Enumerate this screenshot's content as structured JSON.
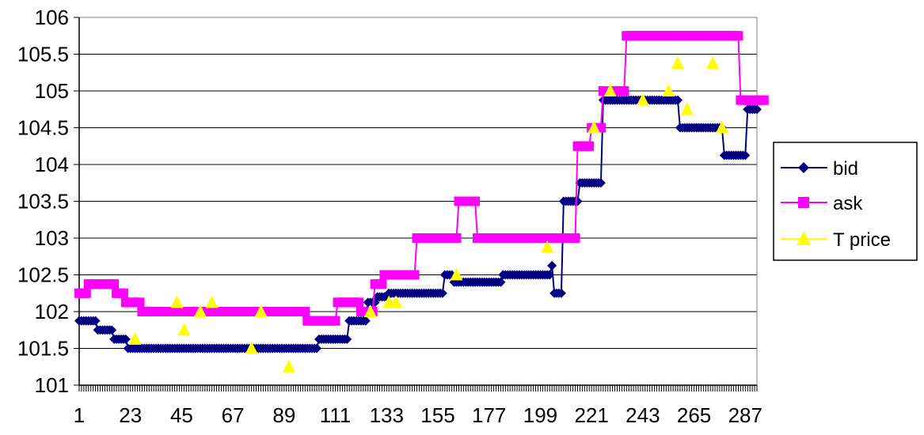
{
  "chart_data": {
    "type": "line",
    "title": "",
    "xlabel": "",
    "ylabel": "",
    "ylim": [
      101,
      106
    ],
    "y_ticks": [
      "101",
      "101.5",
      "102",
      "102.5",
      "103",
      "103.5",
      "104",
      "104.5",
      "105",
      "105.5",
      "106"
    ],
    "x_tick_labels": [
      "1",
      "23",
      "45",
      "67",
      "89",
      "111",
      "133",
      "155",
      "177",
      "199",
      "221",
      "243",
      "265",
      "287"
    ],
    "xlim": [
      1,
      292
    ],
    "grid": "horizontal",
    "legend_position": "right",
    "series": [
      {
        "name": "bid",
        "color": "#000080",
        "marker": "diamond",
        "segments": [
          [
            1,
            8,
            101.875
          ],
          [
            9,
            15,
            101.75
          ],
          [
            16,
            21,
            101.625
          ],
          [
            22,
            25,
            101.5
          ],
          [
            26,
            103,
            101.5
          ],
          [
            104,
            111,
            101.625
          ],
          [
            112,
            116,
            101.625
          ],
          [
            117,
            124,
            101.875
          ],
          [
            125,
            128,
            102.125
          ],
          [
            129,
            133,
            102.2
          ],
          [
            134,
            157,
            102.25
          ],
          [
            158,
            161,
            102.5
          ],
          [
            162,
            168,
            102.4
          ],
          [
            169,
            182,
            102.4
          ],
          [
            183,
            196,
            102.5
          ],
          [
            197,
            203,
            102.5
          ],
          [
            204,
            204,
            102.625
          ],
          [
            205,
            208,
            102.25
          ],
          [
            209,
            215,
            103.5
          ],
          [
            216,
            225,
            103.75
          ],
          [
            226,
            258,
            104.875
          ],
          [
            259,
            277,
            104.5
          ],
          [
            278,
            287,
            104.125
          ],
          [
            288,
            292,
            104.75
          ]
        ]
      },
      {
        "name": "ask",
        "color": "#FF00FF",
        "marker": "square",
        "segments": [
          [
            1,
            4,
            102.25
          ],
          [
            5,
            16,
            102.375
          ],
          [
            17,
            20,
            102.25
          ],
          [
            21,
            27,
            102.125
          ],
          [
            28,
            40,
            102.0
          ],
          [
            41,
            98,
            102.0
          ],
          [
            99,
            111,
            101.875
          ],
          [
            112,
            121,
            102.125
          ],
          [
            122,
            127,
            102.0
          ],
          [
            128,
            131,
            102.375
          ],
          [
            132,
            137,
            102.5
          ],
          [
            138,
            145,
            102.5
          ],
          [
            146,
            163,
            103.0
          ],
          [
            164,
            171,
            103.5
          ],
          [
            172,
            214,
            103.0
          ],
          [
            215,
            220,
            104.25
          ],
          [
            221,
            225,
            104.5
          ],
          [
            226,
            235,
            105.0
          ],
          [
            236,
            284,
            105.75
          ],
          [
            285,
            295,
            104.875
          ]
        ]
      },
      {
        "name": "T price",
        "color": "#FFFF00",
        "marker": "triangle",
        "points": [
          [
            25,
            101.625
          ],
          [
            43,
            102.125
          ],
          [
            46,
            101.75
          ],
          [
            53,
            102.0
          ],
          [
            58,
            102.125
          ],
          [
            75,
            101.5
          ],
          [
            79,
            102.0
          ],
          [
            91,
            101.25
          ],
          [
            126,
            102.0
          ],
          [
            134,
            102.125
          ],
          [
            137,
            102.125
          ],
          [
            163,
            102.5
          ],
          [
            202,
            102.875
          ],
          [
            222,
            104.5
          ],
          [
            229,
            105.0
          ],
          [
            243,
            104.875
          ],
          [
            254,
            105.0
          ],
          [
            258,
            105.375
          ],
          [
            262,
            104.75
          ],
          [
            273,
            105.375
          ],
          [
            277,
            104.5
          ]
        ]
      }
    ]
  }
}
